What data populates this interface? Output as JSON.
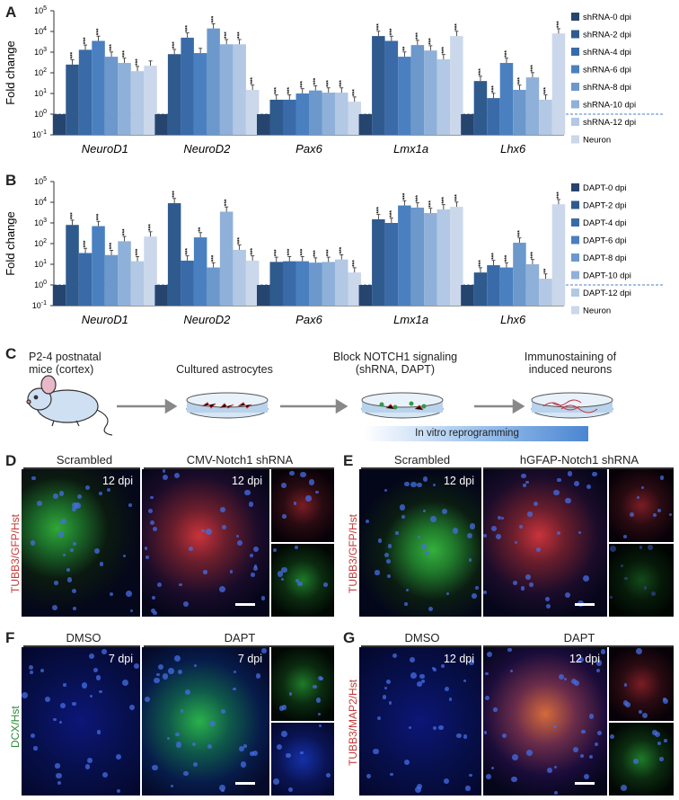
{
  "panels": {
    "A": "A",
    "B": "B",
    "C": "C",
    "D": "D",
    "E": "E",
    "F": "F",
    "G": "G"
  },
  "chart_data": [
    {
      "type": "bar",
      "panel": "A",
      "ylabel": "Fold change",
      "yscale": "log",
      "ylim_exp": [
        -1,
        5
      ],
      "ytick_labels": [
        "10-1",
        "100",
        "101",
        "102",
        "103",
        "104",
        "105"
      ],
      "reference_line": 1,
      "categories": [
        "NeuroD1",
        "NeuroD2",
        "Pax6",
        "Lmx1a",
        "Lhx6"
      ],
      "series": [
        {
          "name": "shRNA-0 dpi",
          "color": "#26456e",
          "values": [
            1,
            1,
            1,
            1,
            1
          ]
        },
        {
          "name": "shRNA-2 dpi",
          "color": "#2f5a8e",
          "values": [
            250,
            800,
            5,
            6000,
            40
          ]
        },
        {
          "name": "shRNA-4 dpi",
          "color": "#3a6ba8",
          "values": [
            1300,
            5000,
            5,
            3500,
            6
          ]
        },
        {
          "name": "shRNA-6 dpi",
          "color": "#4a80c0",
          "values": [
            3500,
            900,
            10,
            600,
            300
          ]
        },
        {
          "name": "shRNA-8 dpi",
          "color": "#6c98cc",
          "values": [
            600,
            14000,
            14,
            2200,
            15
          ]
        },
        {
          "name": "shRNA-10 dpi",
          "color": "#8fb0d8",
          "values": [
            300,
            2400,
            11,
            1200,
            60
          ]
        },
        {
          "name": "shRNA-12 dpi",
          "color": "#b2c8e4",
          "values": [
            120,
            2400,
            11,
            450,
            5
          ]
        },
        {
          "name": "Neuron",
          "color": "#cbd7ea",
          "values": [
            220,
            15,
            4,
            6000,
            8000
          ]
        }
      ],
      "significance": [
        [
          "",
          "***",
          "***",
          "***",
          "***",
          "***",
          "***",
          ""
        ],
        [
          "",
          "***",
          "***",
          "",
          "***",
          "***",
          "***",
          "***"
        ],
        [
          "",
          "***",
          "***",
          "***",
          "***",
          "***",
          "***",
          "***"
        ],
        [
          "",
          "***",
          "***",
          "**",
          "***",
          "***",
          "***",
          "***"
        ],
        [
          "",
          "***",
          "***",
          "***",
          "***",
          "***",
          "***",
          "***"
        ]
      ]
    },
    {
      "type": "bar",
      "panel": "B",
      "ylabel": "Fold change",
      "yscale": "log",
      "ylim_exp": [
        -1,
        5
      ],
      "ytick_labels": [
        "10-1",
        "100",
        "101",
        "102",
        "103",
        "104",
        "105"
      ],
      "reference_line": 1,
      "categories": [
        "NeuroD1",
        "NeuroD2",
        "Pax6",
        "Lmx1a",
        "Lhx6"
      ],
      "series": [
        {
          "name": "DAPT-0 dpi",
          "color": "#26456e",
          "values": [
            1,
            1,
            1,
            1,
            1
          ]
        },
        {
          "name": "DAPT-2 dpi",
          "color": "#2f5a8e",
          "values": [
            800,
            9000,
            13,
            1500,
            4
          ]
        },
        {
          "name": "DAPT-4 dpi",
          "color": "#3a6ba8",
          "values": [
            35,
            15,
            14,
            1000,
            9
          ]
        },
        {
          "name": "DAPT-6 dpi",
          "color": "#4a80c0",
          "values": [
            700,
            200,
            14,
            7000,
            7
          ]
        },
        {
          "name": "DAPT-8 dpi",
          "color": "#6c98cc",
          "values": [
            28,
            7,
            12,
            5500,
            110
          ]
        },
        {
          "name": "DAPT-10 dpi",
          "color": "#8fb0d8",
          "values": [
            130,
            3500,
            13,
            3000,
            10
          ]
        },
        {
          "name": "DAPT-12 dpi",
          "color": "#b2c8e4",
          "values": [
            14,
            50,
            17,
            4500,
            2
          ]
        },
        {
          "name": "Neuron",
          "color": "#cbd7ea",
          "values": [
            220,
            15,
            4,
            6000,
            8000
          ]
        }
      ],
      "significance": [
        [
          "",
          "***",
          "***",
          "***",
          "***",
          "***",
          "***",
          "***"
        ],
        [
          "",
          "***",
          "***",
          "**",
          "***",
          "***",
          "***",
          "***"
        ],
        [
          "",
          "***",
          "***",
          "***",
          "***",
          "***",
          "***",
          "***"
        ],
        [
          "",
          "***",
          "***",
          "***",
          "***",
          "***",
          "***",
          "***"
        ],
        [
          "",
          "***",
          "***",
          "***",
          "***",
          "***",
          "**",
          "***"
        ]
      ]
    }
  ],
  "schematic": {
    "step1_line1": "P2-4 postnatal",
    "step1_line2": "mice (cortex)",
    "step2": "Cultured astrocytes",
    "step3_line1": "Block NOTCH1 signaling",
    "step3_line2": "(shRNA, DAPT)",
    "step4_line1": "Immunostaining of",
    "step4_line2": "induced neurons",
    "bar_label": "In vitro reprogramming"
  },
  "micrographs": {
    "D": {
      "side_label": "TUBB3/GFP/Hst",
      "left_title": "Scrambled",
      "right_title": "CMV-Notch1 shRNA",
      "left_dpi": "12 dpi",
      "right_dpi": "12 dpi"
    },
    "E": {
      "side_label": "TUBB3/GFP/Hst",
      "left_title": "Scrambled",
      "right_title": "hGFAP-Notch1 shRNA",
      "left_dpi": "12 dpi"
    },
    "F": {
      "side_label": "DCX/Hst",
      "left_title": "DMSO",
      "right_title": "DAPT",
      "left_dpi": "7 dpi",
      "right_dpi": "7 dpi"
    },
    "G": {
      "side_label": "TUBB3/MAP2/Hst",
      "left_title": "DMSO",
      "right_title": "DAPT",
      "left_dpi": "12 dpi",
      "right_dpi": "12 dpi"
    }
  }
}
